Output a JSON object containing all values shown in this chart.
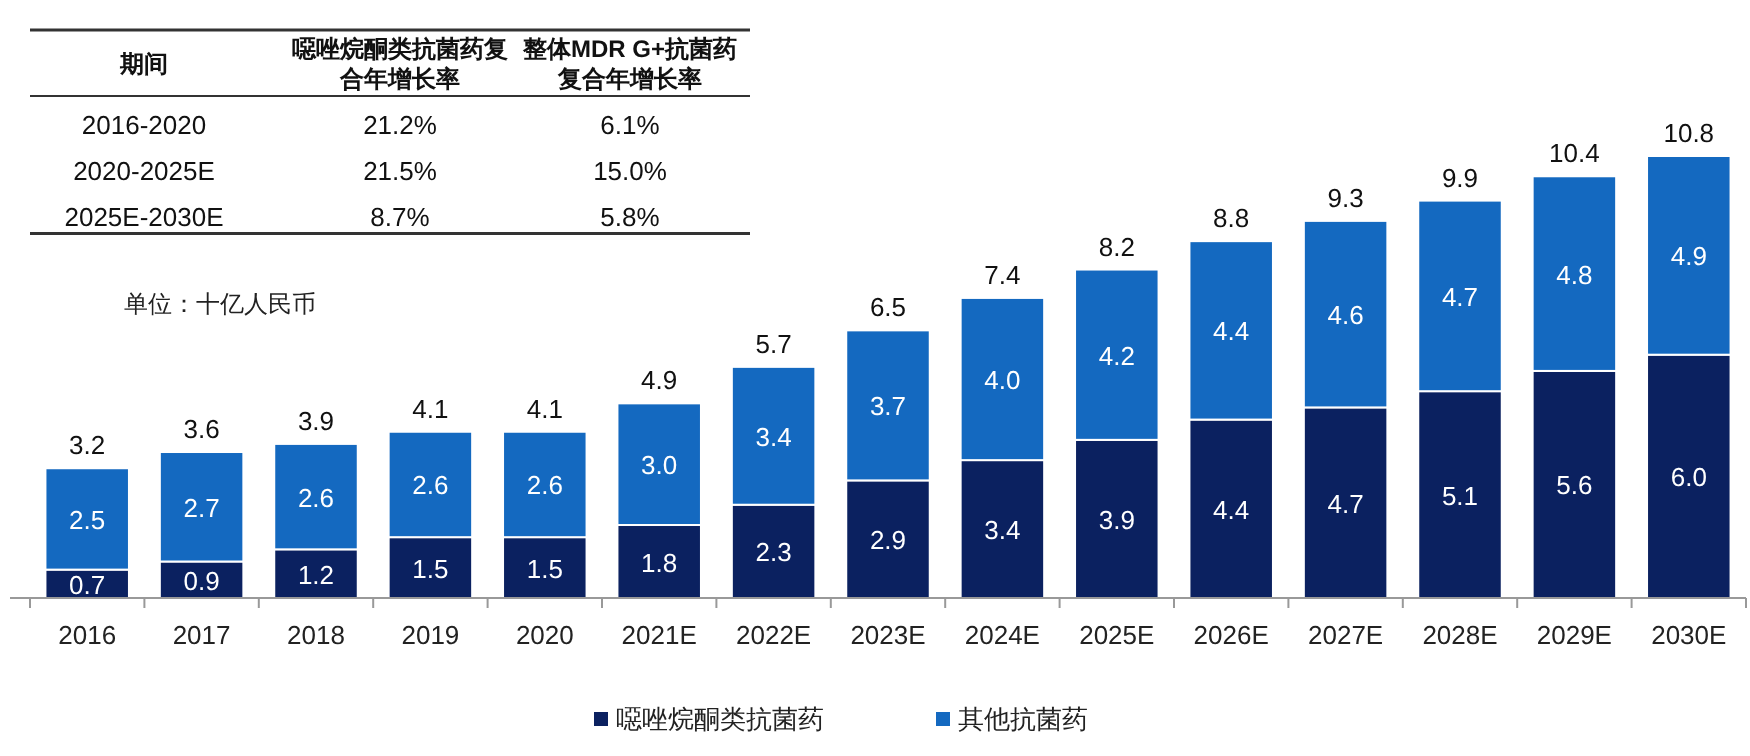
{
  "chart_data": {
    "type": "bar",
    "stacked": true,
    "legend": "bottom",
    "categories": [
      "2016",
      "2017",
      "2018",
      "2019",
      "2020",
      "2021E",
      "2022E",
      "2023E",
      "2024E",
      "2025E",
      "2026E",
      "2027E",
      "2028E",
      "2029E",
      "2030E"
    ],
    "series": [
      {
        "name": "噁唑烷酮类抗菌药",
        "color": "#0b2160",
        "values": [
          0.7,
          0.9,
          1.2,
          1.5,
          1.5,
          1.8,
          2.3,
          2.9,
          3.4,
          3.9,
          4.4,
          4.7,
          5.1,
          5.6,
          6.0
        ],
        "value_labels": [
          "0.7",
          "0.9",
          "1.2",
          "1.5",
          "1.5",
          "1.8",
          "2.3",
          "2.9",
          "3.4",
          "3.9",
          "4.4",
          "4.7",
          "5.1",
          "5.6",
          "6.0"
        ]
      },
      {
        "name": "其他抗菌药",
        "color": "#1469c0",
        "values": [
          2.5,
          2.7,
          2.6,
          2.6,
          2.6,
          3.0,
          3.4,
          3.7,
          4.0,
          4.2,
          4.4,
          4.6,
          4.7,
          4.8,
          4.9
        ],
        "value_labels": [
          "2.5",
          "2.7",
          "2.6",
          "2.6",
          "2.6",
          "3.0",
          "3.4",
          "3.7",
          "4.0",
          "4.2",
          "4.4",
          "4.6",
          "4.7",
          "4.8",
          "4.9"
        ]
      }
    ],
    "totals": [
      "3.2",
      "3.6",
      "3.9",
      "4.1",
      "4.1",
      "4.9",
      "5.7",
      "6.5",
      "7.4",
      "8.2",
      "8.8",
      "9.3",
      "9.9",
      "10.4",
      "10.8"
    ],
    "annotations": [
      "期间",
      "噁唑烷酮类抗菌药复合年增长率",
      "整体MDR G+抗菌药复合年增长率",
      "2016-2020",
      "21.2%",
      "6.1%",
      "2020-2025E",
      "21.5%",
      "15.0%",
      "2025E-2030E",
      "8.7%",
      "5.8%",
      "单位：十亿人民币"
    ]
  }
}
